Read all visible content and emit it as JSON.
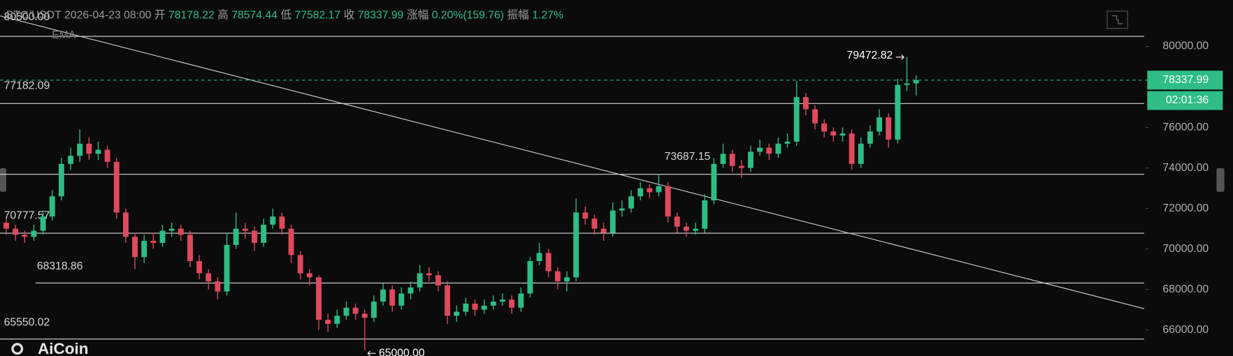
{
  "chart_data": {
    "type": "candlestick",
    "header": {
      "symbol": "BTC/USDT",
      "time": "2026-04-23 08:00",
      "open_label": "开",
      "high_label": "高",
      "low_label": "低",
      "close_label": "收",
      "change_label": "涨幅",
      "change": "0.20%(159.76)",
      "amplitude_label": "振幅",
      "amplitude": "1.27%"
    },
    "indicator": "EMA",
    "watermark": "AiCoin",
    "countdown": "02:01:36",
    "up_color": "#2ebd85",
    "down_color": "#e0495c",
    "ylim": [
      64720,
      82288
    ],
    "yticks": [
      {
        "value": 66000,
        "label": "66000.00"
      },
      {
        "value": 68000,
        "label": "68000.00"
      },
      {
        "value": 70000,
        "label": "70000.00"
      },
      {
        "value": 72000,
        "label": "72000.00"
      },
      {
        "value": 74000,
        "label": "74000.00"
      },
      {
        "value": 76000,
        "label": "76000.00"
      },
      {
        "value": 78000,
        "label": "78000.00"
      },
      {
        "value": 80000,
        "label": "80000.00"
      }
    ],
    "levels": [
      {
        "value": 80500,
        "label": "80500.00"
      },
      {
        "value": 77182.09,
        "label": "77182.09"
      },
      {
        "value": 73687.15,
        "label": "73687.15"
      },
      {
        "value": 70777.57,
        "label": "70777.57"
      },
      {
        "value": 68318.86,
        "label": "68318.86"
      },
      {
        "value": 65550.02,
        "label": "65550.02"
      }
    ],
    "extremes": [
      {
        "value": 79472.82,
        "label": "79472.82"
      },
      {
        "value": 65000,
        "label": "65000.00"
      }
    ],
    "trendline": [
      81513,
      67052
    ],
    "open": [
      71300,
      71000,
      70700,
      70600,
      70900,
      71600,
      72600,
      74200,
      74600,
      75200,
      74700,
      74900,
      74300,
      71800,
      70600,
      69600,
      70400,
      70300,
      70900,
      71000,
      70700,
      69400,
      68800,
      68400,
      67900,
      70200,
      71000,
      70900,
      70300,
      71200,
      71600,
      71000,
      69700,
      68800,
      68600,
      66500,
      66300,
      66700,
      67100,
      66800,
      66600,
      67400,
      68000,
      67200,
      67800,
      68100,
      68800,
      68700,
      68200,
      66700,
      66900,
      67300,
      67000,
      67200,
      67400,
      67500,
      67100,
      67800,
      69400,
      69800,
      68900,
      68400,
      68600,
      71800,
      71500,
      71000,
      70800,
      71900,
      72000,
      72600,
      73000,
      72800,
      73100,
      71600,
      71100,
      70900,
      71000,
      72400,
      74200,
      74700,
      74100,
      74000,
      74800,
      75000,
      74700,
      75200,
      75300,
      77500,
      76900,
      76200,
      75800,
      75600,
      75700,
      74200,
      75200,
      75800,
      76500,
      75400,
      78100,
      78178.22
    ],
    "high": [
      71500,
      71200,
      70900,
      71200,
      71900,
      72900,
      74500,
      75000,
      75900,
      75500,
      75300,
      75100,
      74500,
      72000,
      70800,
      70700,
      70800,
      71200,
      71300,
      71200,
      70900,
      69700,
      69000,
      68600,
      70800,
      71800,
      71300,
      71100,
      71500,
      72000,
      71800,
      71200,
      69900,
      69000,
      68700,
      66800,
      67000,
      67400,
      67300,
      67000,
      67700,
      68300,
      68200,
      68100,
      68400,
      69200,
      69100,
      68900,
      68400,
      67200,
      67600,
      67500,
      67500,
      67700,
      67800,
      67700,
      68100,
      69600,
      70300,
      70000,
      69100,
      68900,
      72500,
      72100,
      71700,
      71300,
      72300,
      72400,
      72900,
      73300,
      73200,
      73687.15,
      73300,
      71800,
      71300,
      71300,
      72700,
      74500,
      75200,
      74900,
      74400,
      75100,
      75400,
      75200,
      75500,
      75700,
      78295,
      77700,
      77100,
      76400,
      76000,
      76000,
      75900,
      75500,
      76100,
      76900,
      76700,
      78400,
      79472.82,
      78574.44
    ],
    "low": [
      70700,
      70400,
      70300,
      70400,
      70700,
      71400,
      72400,
      73900,
      74300,
      74400,
      74400,
      74000,
      71500,
      70300,
      69000,
      69300,
      70000,
      70100,
      70600,
      70400,
      69100,
      68500,
      68000,
      67500,
      67700,
      70000,
      70500,
      69900,
      70100,
      71000,
      70700,
      69300,
      68500,
      68200,
      66000,
      65900,
      66100,
      66500,
      66500,
      65000,
      66400,
      67200,
      66900,
      67000,
      67500,
      67900,
      68400,
      67900,
      66300,
      66400,
      66700,
      66700,
      66800,
      67000,
      67200,
      66800,
      66900,
      67600,
      69200,
      68600,
      68000,
      67900,
      68400,
      71200,
      70700,
      70400,
      70600,
      71600,
      71800,
      72400,
      72500,
      72600,
      71300,
      70800,
      70600,
      70700,
      70800,
      72200,
      74000,
      73800,
      73500,
      73800,
      74600,
      74400,
      74500,
      75000,
      75100,
      76600,
      75900,
      75500,
      75300,
      75300,
      73900,
      74000,
      75000,
      75600,
      75000,
      75200,
      77800,
      77582.17
    ],
    "close": [
      71000,
      70700,
      70600,
      70900,
      71600,
      72600,
      74200,
      74600,
      75200,
      74700,
      74900,
      74300,
      71800,
      70600,
      69600,
      70400,
      70300,
      70900,
      71000,
      70700,
      69400,
      68800,
      68400,
      67900,
      70200,
      71000,
      70900,
      70300,
      71200,
      71600,
      71000,
      69700,
      68800,
      68600,
      66500,
      66300,
      66700,
      67100,
      66800,
      66600,
      67400,
      68000,
      67200,
      67800,
      68100,
      68800,
      68700,
      68200,
      66700,
      66900,
      67300,
      67000,
      67200,
      67400,
      67500,
      67100,
      67800,
      69400,
      69800,
      68900,
      68400,
      68600,
      71800,
      71500,
      71000,
      70800,
      71900,
      72000,
      72600,
      73000,
      72800,
      73100,
      71600,
      71100,
      70900,
      71000,
      72400,
      74200,
      74700,
      74100,
      74000,
      74800,
      75000,
      74700,
      75200,
      75300,
      77500,
      76900,
      76200,
      75800,
      75600,
      75700,
      74200,
      75200,
      75800,
      76500,
      75400,
      78100,
      78178.22,
      78337.99
    ]
  }
}
